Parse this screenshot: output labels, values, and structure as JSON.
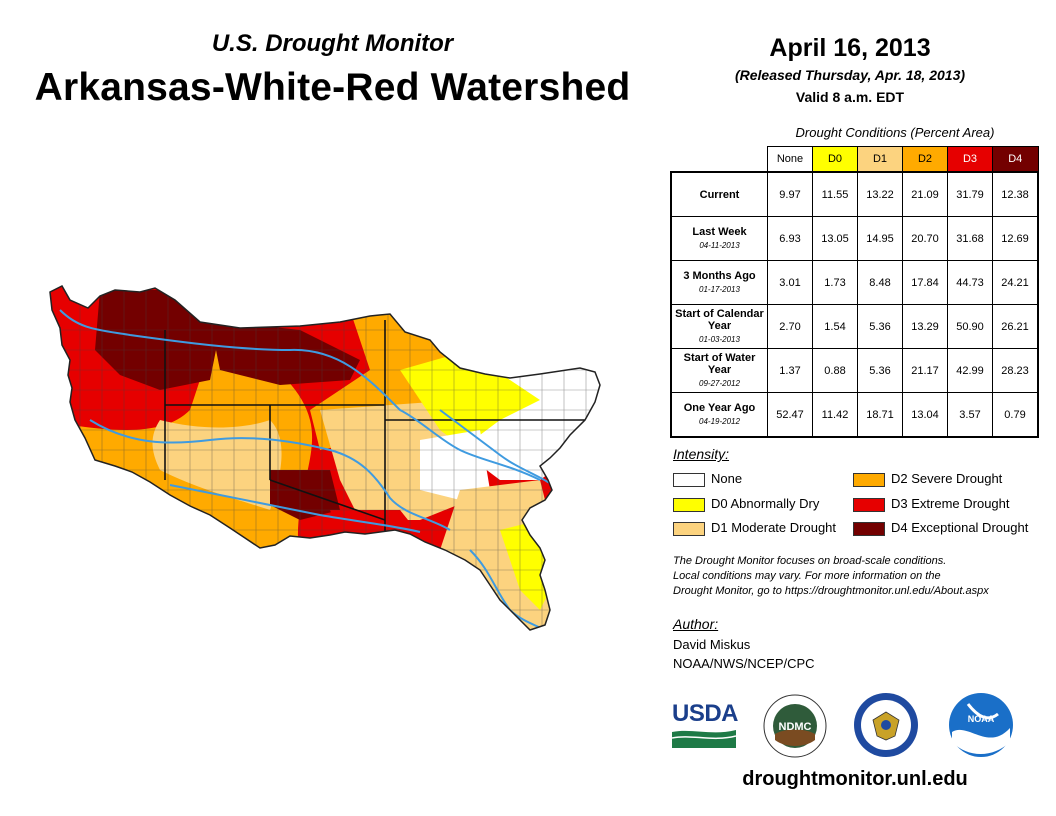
{
  "header": {
    "subtitle": "U.S. Drought Monitor",
    "title": "Arkansas-White-Red Watershed",
    "date": "April 16, 2013",
    "released": "(Released Thursday, Apr. 18, 2013)",
    "valid": "Valid 8 a.m. EDT"
  },
  "table": {
    "caption": "Drought Conditions (Percent Area)",
    "columns": [
      "None",
      "D0",
      "D1",
      "D2",
      "D3",
      "D4"
    ],
    "column_colors": [
      "#ffffff",
      "#ffff00",
      "#fcd37f",
      "#ffaa00",
      "#e60000",
      "#730000"
    ],
    "rows": [
      {
        "label": "Current",
        "date": "",
        "values": [
          "9.97",
          "11.55",
          "13.22",
          "21.09",
          "31.79",
          "12.38"
        ]
      },
      {
        "label": "Last Week",
        "date": "04-11-2013",
        "values": [
          "6.93",
          "13.05",
          "14.95",
          "20.70",
          "31.68",
          "12.69"
        ]
      },
      {
        "label": "3 Months Ago",
        "date": "01-17-2013",
        "values": [
          "3.01",
          "1.73",
          "8.48",
          "17.84",
          "44.73",
          "24.21"
        ]
      },
      {
        "label": "Start of Calendar Year",
        "date": "01-03-2013",
        "values": [
          "2.70",
          "1.54",
          "5.36",
          "13.29",
          "50.90",
          "26.21"
        ]
      },
      {
        "label": "Start of Water Year",
        "date": "09-27-2012",
        "values": [
          "1.37",
          "0.88",
          "5.36",
          "21.17",
          "42.99",
          "28.23"
        ]
      },
      {
        "label": "One Year Ago",
        "date": "04-19-2012",
        "values": [
          "52.47",
          "11.42",
          "18.71",
          "13.04",
          "3.57",
          "0.79"
        ]
      }
    ]
  },
  "legend": {
    "title": "Intensity:",
    "items": [
      {
        "label": "None",
        "color": "#ffffff"
      },
      {
        "label": "D0 Abnormally Dry",
        "color": "#ffff00"
      },
      {
        "label": "D1 Moderate Drought",
        "color": "#fcd37f"
      },
      {
        "label": "D2 Severe Drought",
        "color": "#ffaa00"
      },
      {
        "label": "D3 Extreme Drought",
        "color": "#e60000"
      },
      {
        "label": "D4 Exceptional Drought",
        "color": "#730000"
      }
    ]
  },
  "disclaimer": {
    "line1": "The Drought Monitor focuses on broad-scale conditions.",
    "line2": "Local conditions may vary. For more information on the",
    "line3": "Drought Monitor, go to https://droughtmonitor.unl.edu/About.aspx"
  },
  "author": {
    "title": "Author:",
    "name": "David Miskus",
    "org": "NOAA/NWS/NCEP/CPC"
  },
  "logos": {
    "usda": "USDA",
    "ndmc": "NDMC",
    "noaa": "NOAA"
  },
  "url": "droughtmonitor.unl.edu",
  "colors": {
    "river": "#3f9be0",
    "boundary": "#222222"
  }
}
